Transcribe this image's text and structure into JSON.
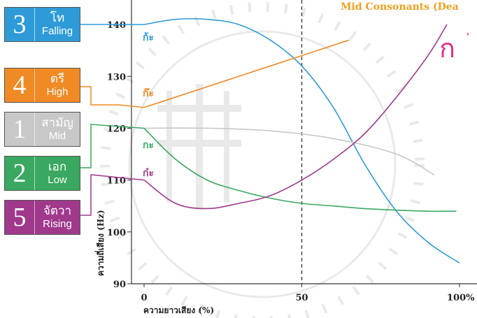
{
  "chart_data": {
    "type": "line",
    "title": "Mid Consonants (Dea",
    "title_color": "#f0a01e",
    "xlabel": "ความยาวเสียง (%)",
    "ylabel": "ความถี่เสียง (Hz)",
    "xlim": [
      0,
      100
    ],
    "ylim": [
      90,
      145
    ],
    "x_ticks": [
      "0",
      "50",
      "100%"
    ],
    "y_ticks": [
      "90",
      "100",
      "110",
      "120",
      "130",
      "140"
    ],
    "reference_line_x": 50,
    "big_glyph": "ก",
    "big_glyph_color": "#e0308a",
    "series": [
      {
        "name": "Falling",
        "label": "ก้ะ",
        "color": "#2e9bd8",
        "x": [
          0,
          10,
          20,
          30,
          40,
          50,
          60,
          70,
          80,
          90,
          100
        ],
        "y": [
          140,
          141,
          141,
          140,
          137,
          132,
          124,
          113,
          104,
          98,
          94
        ]
      },
      {
        "name": "High",
        "label": "ก๊ะ",
        "color": "#f08a24",
        "x": [
          0,
          10,
          20,
          30,
          40,
          50,
          60,
          65
        ],
        "y": [
          124,
          126,
          128,
          130,
          132,
          134,
          136,
          137
        ]
      },
      {
        "name": "Mid",
        "label": "",
        "color": "#c8c8c8",
        "x": [
          0,
          20,
          40,
          60,
          80,
          92
        ],
        "y": [
          120,
          120,
          119.5,
          118,
          115,
          111
        ]
      },
      {
        "name": "Low",
        "label": "กะ",
        "color": "#3aa860",
        "x": [
          0,
          10,
          20,
          30,
          40,
          50,
          60,
          70,
          80,
          90,
          99
        ],
        "y": [
          120,
          114,
          110,
          108,
          106.5,
          105.5,
          105,
          104.5,
          104.2,
          104,
          104
        ]
      },
      {
        "name": "Rising",
        "label": "ก๋ะ",
        "color": "#a0388c",
        "x": [
          0,
          10,
          20,
          30,
          40,
          50,
          60,
          70,
          80,
          90,
          96
        ],
        "y": [
          110,
          105.5,
          104.5,
          105.5,
          107,
          110,
          114,
          119,
          126,
          134,
          140
        ]
      }
    ]
  },
  "tone_boxes": [
    {
      "num": "3",
      "thai": "โท",
      "eng": "Falling",
      "color": "#2e9bd8"
    },
    {
      "num": "4",
      "thai": "ตรี",
      "eng": "High",
      "color": "#f08a24"
    },
    {
      "num": "1",
      "thai": "สามัญ",
      "eng": "Mid",
      "color": "#c8c8c8"
    },
    {
      "num": "2",
      "thai": "เอก",
      "eng": "Low",
      "color": "#3aa860"
    },
    {
      "num": "5",
      "thai": "จัตวา",
      "eng": "Rising",
      "color": "#a0388c"
    }
  ]
}
